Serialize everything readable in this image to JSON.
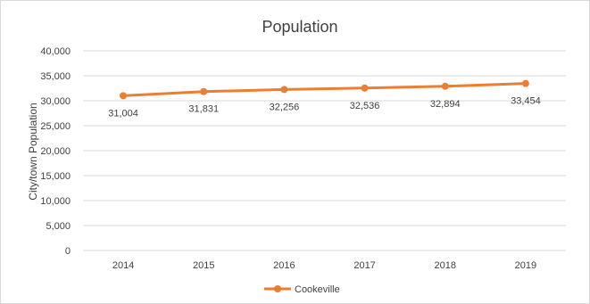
{
  "chart_data": {
    "type": "line",
    "title": "Population",
    "xlabel": "",
    "ylabel": "City/town Population",
    "categories": [
      "2014",
      "2015",
      "2016",
      "2017",
      "2018",
      "2019"
    ],
    "series": [
      {
        "name": "Cookeville",
        "color": "#ED7D31",
        "values": [
          31004,
          31831,
          32256,
          32536,
          32894,
          33454
        ],
        "labels": [
          "31,004",
          "31,831",
          "32,256",
          "32,536",
          "32,894",
          "33,454"
        ]
      }
    ],
    "ylim": [
      0,
      40000
    ],
    "y_ticks": [
      0,
      5000,
      10000,
      15000,
      20000,
      25000,
      30000,
      35000,
      40000
    ],
    "y_tick_labels": [
      "0",
      "5,000",
      "10,000",
      "15,000",
      "20,000",
      "25,000",
      "30,000",
      "35,000",
      "40,000"
    ],
    "grid": true,
    "legend_position": "bottom",
    "colors": {
      "gridline": "#d9d9d9",
      "text": "#404040"
    }
  }
}
